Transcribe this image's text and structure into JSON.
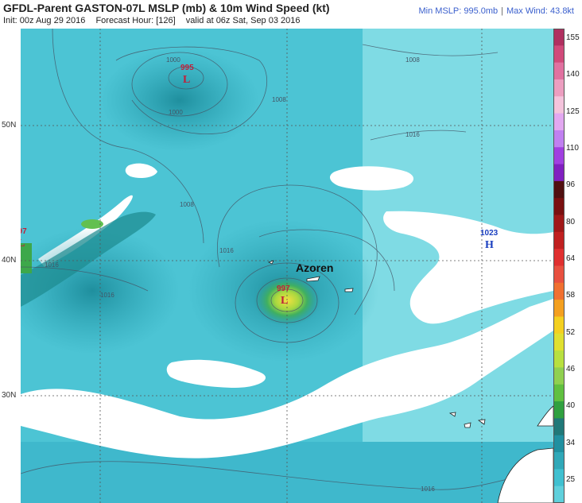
{
  "header": {
    "title": "GFDL-Parent GASTON-07L MSLP (mb) & 10m Wind Speed (kt)",
    "init": "Init: 00z Aug 29 2016",
    "forecast_hour": "Forecast Hour: [126]",
    "valid": "valid at 06z Sat, Sep 03 2016",
    "min_mslp": "Min MSLP: 995.0mb",
    "max_wind": "Max Wind: 43.8kt"
  },
  "map": {
    "lat_labels": [
      "50N",
      "40N",
      "30N"
    ],
    "place_label": "Azoren",
    "pressure_systems": [
      {
        "type": "L",
        "value": "995"
      },
      {
        "type": "L",
        "value": "997"
      },
      {
        "type": "L",
        "value": "997"
      },
      {
        "type": "H",
        "value": "1023"
      }
    ],
    "isobar_labels": [
      "1000",
      "1000",
      "1008",
      "1008",
      "1008",
      "1016",
      "1016",
      "1016",
      "1016",
      "1016"
    ],
    "colors": {
      "low": "#c0203a",
      "high": "#1a3fc0",
      "ocean_strong": "#2fb8c8",
      "calm": "#ffffff"
    }
  },
  "colorbar": {
    "labels": [
      "155",
      "140",
      "125",
      "110",
      "96",
      "80",
      "64",
      "58",
      "52",
      "46",
      "40",
      "34",
      "25"
    ],
    "colors": [
      "#b03060",
      "#d04a7a",
      "#e071a0",
      "#ec9ec0",
      "#f4c4dc",
      "#e2a8f0",
      "#c080f0",
      "#a040e0",
      "#8020c0",
      "#501010",
      "#7a1010",
      "#a01818",
      "#c02020",
      "#e03030",
      "#e85040",
      "#f07030",
      "#f4a020",
      "#f4d020",
      "#e0e030",
      "#b8e040",
      "#90d050",
      "#60c040",
      "#30a040",
      "#207878",
      "#2090a0",
      "#30a8b8",
      "#40c0d0",
      "#60d0dc"
    ]
  }
}
